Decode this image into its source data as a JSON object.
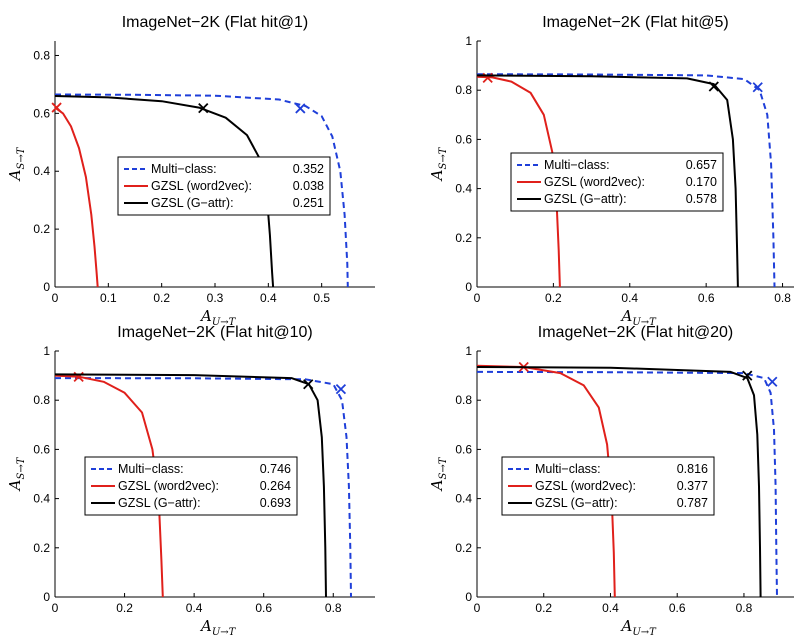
{
  "colors": {
    "multi_class": "#1f3fd9",
    "word2vec": "#e0201b",
    "gattr": "#000000"
  },
  "chart_data": [
    {
      "type": "line",
      "title": "ImageNet−2K (Flat hit@1)",
      "xlabel": "A",
      "xlabel_sub": "U→T",
      "ylabel": "A",
      "ylabel_sub": "S→T",
      "xlim": [
        0,
        0.6
      ],
      "ylim": [
        0,
        0.85
      ],
      "xticks": [
        0,
        0.1,
        0.2,
        0.3,
        0.4,
        0.5
      ],
      "xtick_labels": [
        "0",
        "0.1",
        "0.2",
        "0.3",
        "0.4",
        "0.5"
      ],
      "yticks": [
        0,
        0.2,
        0.4,
        0.6,
        0.8
      ],
      "ytick_labels": [
        "0",
        "0.2",
        "0.4",
        "0.6",
        "0.8"
      ],
      "legend_position": "center",
      "series": [
        {
          "name": "Multi−class:",
          "value": "0.352",
          "style": "dashed",
          "color_key": "multi_class",
          "x": [
            0,
            0.15,
            0.3,
            0.42,
            0.47,
            0.5,
            0.52,
            0.535,
            0.543,
            0.548,
            0.549
          ],
          "y": [
            0.665,
            0.664,
            0.661,
            0.648,
            0.625,
            0.59,
            0.52,
            0.4,
            0.25,
            0.08,
            0
          ],
          "marker": [
            0.46,
            0.617
          ]
        },
        {
          "name": "GZSL (word2vec):",
          "value": "0.038",
          "style": "solid",
          "color_key": "word2vec",
          "x": [
            0,
            0.015,
            0.03,
            0.045,
            0.058,
            0.068,
            0.074,
            0.078,
            0.08
          ],
          "y": [
            0.62,
            0.6,
            0.555,
            0.48,
            0.38,
            0.25,
            0.14,
            0.05,
            0
          ],
          "marker": [
            0.003,
            0.62
          ]
        },
        {
          "name": "GZSL (G−attr):",
          "value": "0.251",
          "style": "solid",
          "color_key": "gattr",
          "x": [
            0,
            0.1,
            0.2,
            0.27,
            0.32,
            0.36,
            0.385,
            0.397,
            0.403,
            0.407,
            0.409
          ],
          "y": [
            0.66,
            0.655,
            0.642,
            0.62,
            0.585,
            0.525,
            0.44,
            0.32,
            0.18,
            0.05,
            0
          ],
          "marker": [
            0.278,
            0.618
          ]
        }
      ]
    },
    {
      "type": "line",
      "title": "ImageNet−2K (Flat hit@5)",
      "xlabel": "A",
      "xlabel_sub": "U→T",
      "ylabel": "A",
      "ylabel_sub": "S→T",
      "xlim": [
        0,
        0.83
      ],
      "ylim": [
        0,
        1
      ],
      "xticks": [
        0,
        0.2,
        0.4,
        0.6,
        0.8
      ],
      "xtick_labels": [
        "0",
        "0.2",
        "0.4",
        "0.6",
        "0.8"
      ],
      "yticks": [
        0,
        0.2,
        0.4,
        0.6,
        0.8,
        1
      ],
      "ytick_labels": [
        "0",
        "0.2",
        "0.4",
        "0.6",
        "0.8",
        "1"
      ],
      "legend_position": "center",
      "series": [
        {
          "name": "Multi−class:",
          "value": "0.657",
          "style": "dashed",
          "color_key": "multi_class",
          "x": [
            0,
            0.3,
            0.6,
            0.7,
            0.74,
            0.76,
            0.77,
            0.776,
            0.779
          ],
          "y": [
            0.865,
            0.864,
            0.86,
            0.845,
            0.8,
            0.7,
            0.5,
            0.2,
            0
          ],
          "marker": [
            0.735,
            0.812
          ]
        },
        {
          "name": "GZSL (word2vec):",
          "value": "0.170",
          "style": "solid",
          "color_key": "word2vec",
          "x": [
            0,
            0.04,
            0.09,
            0.14,
            0.175,
            0.197,
            0.208,
            0.214,
            0.217
          ],
          "y": [
            0.855,
            0.852,
            0.835,
            0.79,
            0.7,
            0.55,
            0.36,
            0.15,
            0
          ],
          "marker": [
            0.028,
            0.85
          ]
        },
        {
          "name": "GZSL (G−attr):",
          "value": "0.578",
          "style": "solid",
          "color_key": "gattr",
          "x": [
            0,
            0.3,
            0.55,
            0.62,
            0.655,
            0.67,
            0.677,
            0.681,
            0.683
          ],
          "y": [
            0.86,
            0.857,
            0.848,
            0.825,
            0.76,
            0.6,
            0.4,
            0.15,
            0
          ],
          "marker": [
            0.62,
            0.815
          ]
        }
      ]
    },
    {
      "type": "line",
      "title": "ImageNet−2K (Flat hit@10)",
      "xlabel": "A",
      "xlabel_sub": "U→T",
      "ylabel": "A",
      "ylabel_sub": "S→T",
      "xlim": [
        0,
        0.92
      ],
      "ylim": [
        0,
        1
      ],
      "xticks": [
        0,
        0.2,
        0.4,
        0.6,
        0.8
      ],
      "xtick_labels": [
        "0",
        "0.2",
        "0.4",
        "0.6",
        "0.8"
      ],
      "yticks": [
        0,
        0.2,
        0.4,
        0.6,
        0.8,
        1
      ],
      "ytick_labels": [
        "0",
        "0.2",
        "0.4",
        "0.6",
        "0.8",
        "1"
      ],
      "legend_position": "center",
      "series": [
        {
          "name": "Multi−class:",
          "value": "0.746",
          "style": "dashed",
          "color_key": "multi_class",
          "x": [
            0,
            0.4,
            0.72,
            0.8,
            0.825,
            0.838,
            0.845,
            0.849,
            0.851
          ],
          "y": [
            0.89,
            0.889,
            0.885,
            0.865,
            0.8,
            0.65,
            0.45,
            0.2,
            0
          ],
          "marker": [
            0.822,
            0.845
          ]
        },
        {
          "name": "GZSL (word2vec):",
          "value": "0.264",
          "style": "solid",
          "color_key": "word2vec",
          "x": [
            0,
            0.07,
            0.14,
            0.2,
            0.25,
            0.28,
            0.298,
            0.306,
            0.31
          ],
          "y": [
            0.9,
            0.895,
            0.875,
            0.83,
            0.75,
            0.6,
            0.4,
            0.15,
            0
          ],
          "marker": [
            0.068,
            0.895
          ]
        },
        {
          "name": "GZSL (G−attr):",
          "value": "0.693",
          "style": "solid",
          "color_key": "gattr",
          "x": [
            0,
            0.4,
            0.68,
            0.73,
            0.755,
            0.767,
            0.773,
            0.777,
            0.779
          ],
          "y": [
            0.905,
            0.902,
            0.89,
            0.865,
            0.8,
            0.65,
            0.45,
            0.2,
            0
          ],
          "marker": [
            0.728,
            0.865
          ]
        }
      ]
    },
    {
      "type": "line",
      "title": "ImageNet−2K (Flat hit@20)",
      "xlabel": "A",
      "xlabel_sub": "U→T",
      "ylabel": "A",
      "ylabel_sub": "S→T",
      "xlim": [
        0,
        0.95
      ],
      "ylim": [
        0,
        1
      ],
      "xticks": [
        0,
        0.2,
        0.4,
        0.6,
        0.8
      ],
      "xtick_labels": [
        "0",
        "0.2",
        "0.4",
        "0.6",
        "0.8"
      ],
      "yticks": [
        0,
        0.2,
        0.4,
        0.6,
        0.8,
        1
      ],
      "ytick_labels": [
        "0",
        "0.2",
        "0.4",
        "0.6",
        "0.8",
        "1"
      ],
      "legend_position": "center",
      "series": [
        {
          "name": "Multi−class:",
          "value": "0.816",
          "style": "dashed",
          "color_key": "multi_class",
          "x": [
            0,
            0.4,
            0.8,
            0.86,
            0.88,
            0.89,
            0.895,
            0.897,
            0.899
          ],
          "y": [
            0.915,
            0.914,
            0.91,
            0.89,
            0.83,
            0.68,
            0.45,
            0.2,
            0
          ],
          "marker": [
            0.885,
            0.875
          ]
        },
        {
          "name": "GZSL (word2vec):",
          "value": "0.377",
          "style": "solid",
          "color_key": "word2vec",
          "x": [
            0,
            0.14,
            0.25,
            0.32,
            0.365,
            0.39,
            0.403,
            0.41,
            0.413
          ],
          "y": [
            0.94,
            0.935,
            0.91,
            0.86,
            0.77,
            0.62,
            0.42,
            0.18,
            0
          ],
          "marker": [
            0.14,
            0.935
          ]
        },
        {
          "name": "GZSL (G−attr):",
          "value": "0.787",
          "style": "solid",
          "color_key": "gattr",
          "x": [
            0,
            0.4,
            0.76,
            0.81,
            0.83,
            0.84,
            0.845,
            0.848,
            0.85
          ],
          "y": [
            0.935,
            0.932,
            0.915,
            0.89,
            0.82,
            0.66,
            0.45,
            0.2,
            0
          ],
          "marker": [
            0.81,
            0.9
          ]
        }
      ]
    }
  ]
}
